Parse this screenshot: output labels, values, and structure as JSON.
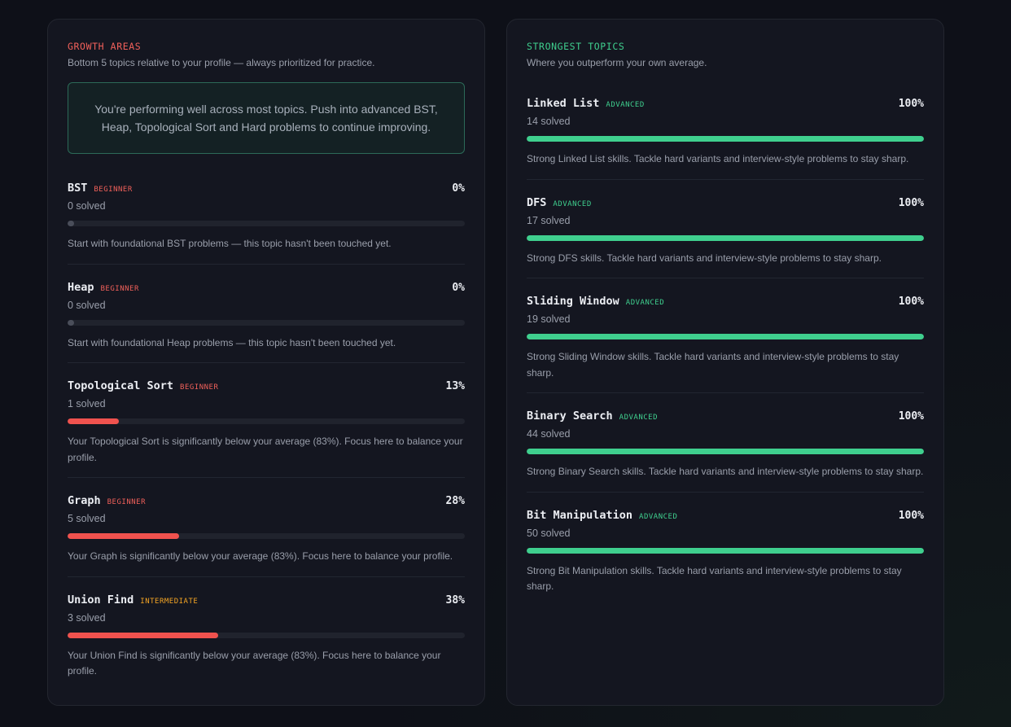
{
  "growth": {
    "title": "GROWTH AREAS",
    "subtitle": "Bottom 5 topics relative to your profile — always prioritized for practice.",
    "callout": "You're performing well across most topics. Push into advanced BST, Heap, Topological Sort and Hard problems to continue improving.",
    "topics": [
      {
        "name": "BST",
        "level": "BEGINNER",
        "level_class": "beginner",
        "percent": "0%",
        "progress": 0,
        "solved": "0 solved",
        "desc": "Start with foundational BST problems — this topic hasn't been touched yet."
      },
      {
        "name": "Heap",
        "level": "BEGINNER",
        "level_class": "beginner",
        "percent": "0%",
        "progress": 0,
        "solved": "0 solved",
        "desc": "Start with foundational Heap problems — this topic hasn't been touched yet."
      },
      {
        "name": "Topological Sort",
        "level": "BEGINNER",
        "level_class": "beginner",
        "percent": "13%",
        "progress": 13,
        "solved": "1 solved",
        "desc": "Your Topological Sort is significantly below your average (83%). Focus here to balance your profile."
      },
      {
        "name": "Graph",
        "level": "BEGINNER",
        "level_class": "beginner",
        "percent": "28%",
        "progress": 28,
        "solved": "5 solved",
        "desc": "Your Graph is significantly below your average (83%). Focus here to balance your profile."
      },
      {
        "name": "Union Find",
        "level": "INTERMEDIATE",
        "level_class": "intermediate",
        "percent": "38%",
        "progress": 38,
        "solved": "3 solved",
        "desc": "Your Union Find is significantly below your average (83%). Focus here to balance your profile."
      }
    ]
  },
  "strong": {
    "title": "STRONGEST TOPICS",
    "subtitle": "Where you outperform your own average.",
    "topics": [
      {
        "name": "Linked List",
        "level": "ADVANCED",
        "level_class": "advanced",
        "percent": "100%",
        "progress": 100,
        "solved": "14 solved",
        "desc": "Strong Linked List skills. Tackle hard variants and interview-style problems to stay sharp."
      },
      {
        "name": "DFS",
        "level": "ADVANCED",
        "level_class": "advanced",
        "percent": "100%",
        "progress": 100,
        "solved": "17 solved",
        "desc": "Strong DFS skills. Tackle hard variants and interview-style problems to stay sharp."
      },
      {
        "name": "Sliding Window",
        "level": "ADVANCED",
        "level_class": "advanced",
        "percent": "100%",
        "progress": 100,
        "solved": "19 solved",
        "desc": "Strong Sliding Window skills. Tackle hard variants and interview-style problems to stay sharp."
      },
      {
        "name": "Binary Search",
        "level": "ADVANCED",
        "level_class": "advanced",
        "percent": "100%",
        "progress": 100,
        "solved": "44 solved",
        "desc": "Strong Binary Search skills. Tackle hard variants and interview-style problems to stay sharp."
      },
      {
        "name": "Bit Manipulation",
        "level": "ADVANCED",
        "level_class": "advanced",
        "percent": "100%",
        "progress": 100,
        "solved": "50 solved",
        "desc": "Strong Bit Manipulation skills. Tackle hard variants and interview-style problems to stay sharp."
      }
    ]
  },
  "colors": {
    "red": "#f0524e",
    "green": "#3fcf8e",
    "orange": "#f5a524"
  }
}
